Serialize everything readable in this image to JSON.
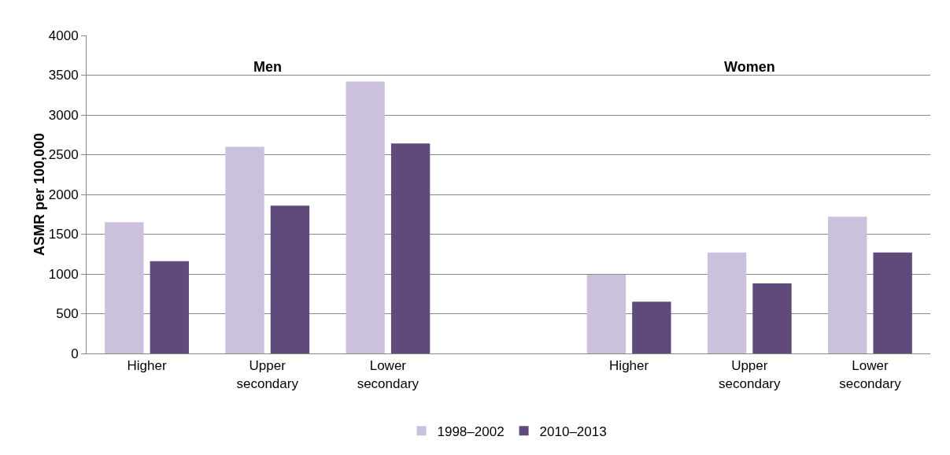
{
  "chart_data": {
    "type": "bar",
    "ylabel": "ASMR per 100,000",
    "categories": [
      "Higher",
      "Upper secondary",
      "Lower secondary",
      null,
      "Higher",
      "Upper secondary",
      "Lower secondary"
    ],
    "series": [
      {
        "name": "1998–2002",
        "color": "#ccc1dd",
        "values": [
          1650,
          2600,
          3420,
          null,
          990,
          1270,
          1720
        ]
      },
      {
        "name": "2010–2013",
        "color": "#604a7b",
        "values": [
          1160,
          1860,
          2640,
          null,
          650,
          880,
          1270
        ]
      }
    ],
    "annotations": [
      "Men",
      "Women"
    ],
    "ylim": [
      0,
      4000
    ],
    "yticks": [
      0,
      500,
      1000,
      1500,
      2000,
      2500,
      3000,
      3500,
      4000
    ],
    "grid": "y",
    "legend": "bottom"
  }
}
